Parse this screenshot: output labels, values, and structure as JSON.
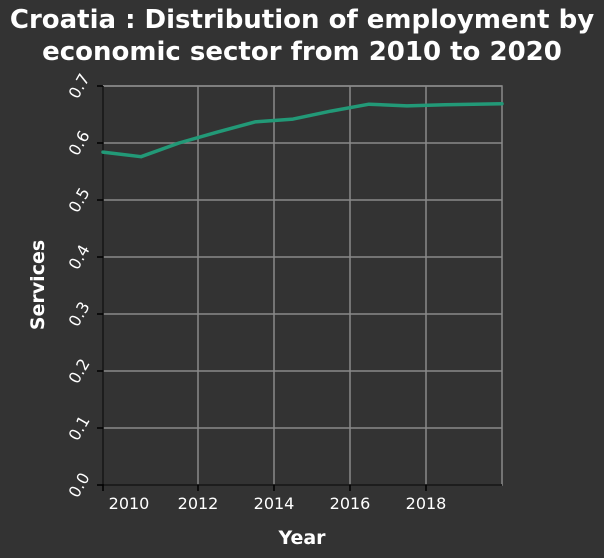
{
  "chart_data": {
    "type": "line",
    "title_lines": [
      "Croatia : Distribution of employment by",
      "economic sector from 2010 to 2020"
    ],
    "xlabel": "Year",
    "ylabel": "Services",
    "xlim": [
      2009.5,
      2020.0
    ],
    "ylim": [
      0.0,
      0.7
    ],
    "x_ticks": [
      {
        "value": 2009.5,
        "label": "2010"
      },
      {
        "value": 2012,
        "label": "2012"
      },
      {
        "value": 2014,
        "label": "2014"
      },
      {
        "value": 2016,
        "label": "2016"
      },
      {
        "value": 2018,
        "label": "2018"
      }
    ],
    "extra_x_labels": [
      {
        "value": 2010.9,
        "label": "2010"
      }
    ],
    "y_ticks": [
      0.0,
      0.1,
      0.2,
      0.3,
      0.4,
      0.5,
      0.6,
      0.7
    ],
    "y_tick_labels": [
      "0.0",
      "0.1",
      "0.2",
      "0.3",
      "0.4",
      "0.5",
      "0.6",
      "0.7"
    ],
    "grid": true,
    "series": [
      {
        "color": "#229977",
        "x": [
          2009.5,
          2010.5,
          2011.5,
          2012.5,
          2013.5,
          2014.5,
          2015.5,
          2016.5,
          2017.5,
          2018.5,
          2020.0
        ],
        "y": [
          0.584,
          0.576,
          0.6,
          0.619,
          0.637,
          0.642,
          0.656,
          0.668,
          0.665,
          0.667,
          0.669
        ]
      }
    ],
    "colors": {
      "background": "#333333",
      "grid": "#8a8a8a",
      "axis": "#000000",
      "text": "#ffffff"
    }
  }
}
